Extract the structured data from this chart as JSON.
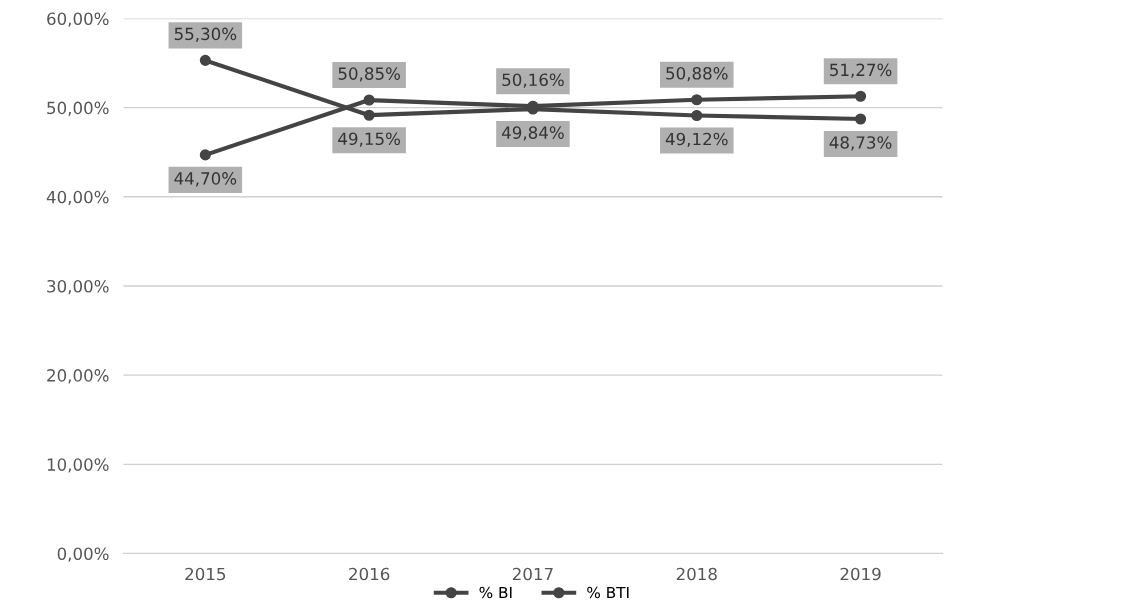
{
  "chart_data": {
    "type": "line",
    "categories": [
      "2015",
      "2016",
      "2017",
      "2018",
      "2019"
    ],
    "series": [
      {
        "name": "% BI",
        "color": "#444444",
        "values": [
          55.3,
          49.15,
          49.84,
          49.12,
          48.73
        ],
        "value_labels": [
          "55,30%",
          "49,15%",
          "49,84%",
          "49,12%",
          "48,73%"
        ]
      },
      {
        "name": "% BTI",
        "color": "#444444",
        "values": [
          44.7,
          50.85,
          50.16,
          50.88,
          51.27
        ],
        "value_labels": [
          "44,70%",
          "50,85%",
          "50,16%",
          "50,88%",
          "51,27%"
        ]
      }
    ],
    "ylim": [
      0,
      60
    ],
    "yticks": [
      {
        "value": 0,
        "label": "0,00%"
      },
      {
        "value": 10,
        "label": "10,00%"
      },
      {
        "value": 20,
        "label": "20,00%"
      },
      {
        "value": 30,
        "label": "30,00%"
      },
      {
        "value": 40,
        "label": "40,00%"
      },
      {
        "value": 50,
        "label": "50,00%"
      },
      {
        "value": 60,
        "label": "60,00%"
      }
    ],
    "grid": "y",
    "legend": "bottom",
    "marker": "circle",
    "line_style": "solid"
  }
}
